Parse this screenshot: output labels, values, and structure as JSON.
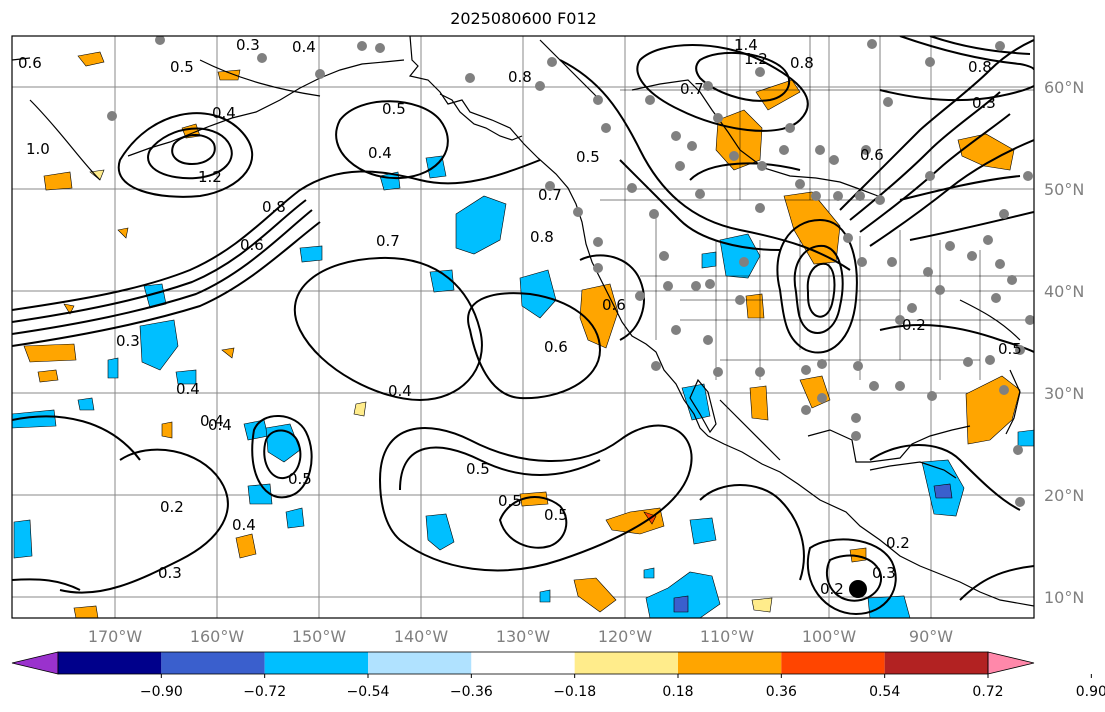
{
  "title": "2025080600 F012",
  "lat_labels": [
    "60°N",
    "50°N",
    "40°N",
    "30°N",
    "20°N",
    "10°N"
  ],
  "lon_labels": [
    "170°W",
    "160°W",
    "150°W",
    "140°W",
    "130°W",
    "120°W",
    "110°W",
    "100°W",
    "90°W"
  ],
  "colorbar": {
    "ticks": [
      "−0.90",
      "−0.72",
      "−0.54",
      "−0.36",
      "−0.18",
      "0.18",
      "0.36",
      "0.54",
      "0.72",
      "0.90"
    ],
    "colors": [
      "#9a32cd",
      "#00008b",
      "#3a5fcd",
      "#00bfff",
      "#b0e2ff",
      "#ffffff",
      "#ffec8b",
      "#ffa500",
      "#ff4500",
      "#b22222",
      "#ff88aa"
    ]
  },
  "contour_labels": [
    "0.6",
    "0.3",
    "0.4",
    "0.5",
    "1.0",
    "0.4",
    "1.2",
    "0.8",
    "0.6",
    "0.7",
    "0.5",
    "0.4",
    "0.8",
    "0.7",
    "0.8",
    "0.5",
    "0.3",
    "0.4",
    "0.4",
    "0.6",
    "0.4",
    "0.5",
    "0.5",
    "0.5",
    "0.2",
    "0.4",
    "0.3",
    "0.4",
    "0.5",
    "0.6",
    "0.2",
    "0.2",
    "0.3",
    "0.8",
    "1.4",
    "1.2",
    "0.8",
    "0.3",
    "0.6",
    "0.7",
    "0.5",
    "0.2"
  ]
}
